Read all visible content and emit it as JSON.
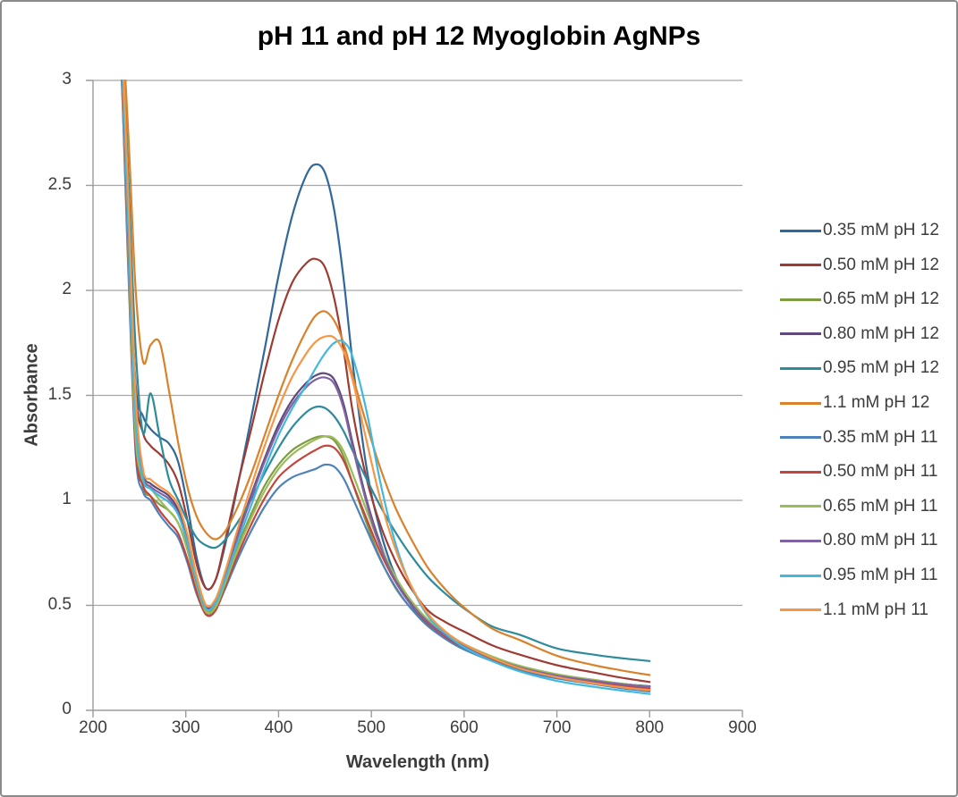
{
  "window": {
    "background": "#ffffff",
    "border_color": "#8a8a8a"
  },
  "colors": {
    "gridline": "#a6a6a6",
    "axis_line": "#9b9b9b",
    "tick_label_text": "#3c3c3c",
    "title_text": "#000000"
  },
  "chart_data": {
    "type": "line",
    "title": "pH 11 and pH 12 Myoglobin AgNPs",
    "xlabel": "Wavelength (nm)",
    "ylabel": "Absorbance",
    "xlim": [
      200,
      900
    ],
    "ylim": [
      0,
      3
    ],
    "xticks": [
      200,
      300,
      400,
      500,
      600,
      700,
      800,
      900
    ],
    "yticks": [
      0,
      0.5,
      1,
      1.5,
      2,
      2.5,
      3
    ],
    "ytick_labels": [
      "0",
      "0.5",
      "1",
      "1.5",
      "2",
      "2.5",
      "3"
    ],
    "grid": "horizontal",
    "legend_position": "right",
    "x": [
      223,
      230,
      238,
      246,
      254,
      262,
      272,
      282,
      292,
      302,
      312,
      322,
      332,
      342,
      355,
      370,
      385,
      400,
      415,
      430,
      440,
      450,
      460,
      470,
      480,
      495,
      510,
      525,
      540,
      560,
      580,
      600,
      630,
      660,
      700,
      740,
      770,
      800
    ],
    "series": [
      {
        "name": "0.35 mM pH 12",
        "color": "#31689b",
        "values": [
          3.5,
          3.2,
          2.3,
          1.55,
          1.4,
          1.34,
          1.3,
          1.27,
          1.18,
          0.97,
          0.72,
          0.58,
          0.62,
          0.78,
          1.05,
          1.38,
          1.72,
          2.07,
          2.36,
          2.55,
          2.6,
          2.56,
          2.38,
          2.06,
          1.65,
          1.15,
          0.85,
          0.65,
          0.52,
          0.41,
          0.34,
          0.29,
          0.24,
          0.2,
          0.165,
          0.14,
          0.125,
          0.115
        ]
      },
      {
        "name": "0.50 mM pH 12",
        "color": "#9e3b33",
        "values": [
          3.5,
          3.2,
          2.35,
          1.52,
          1.32,
          1.26,
          1.22,
          1.17,
          1.08,
          0.9,
          0.69,
          0.58,
          0.62,
          0.8,
          1.06,
          1.33,
          1.61,
          1.86,
          2.04,
          2.13,
          2.15,
          2.11,
          1.96,
          1.72,
          1.42,
          1.1,
          0.88,
          0.72,
          0.6,
          0.48,
          0.42,
          0.375,
          0.31,
          0.265,
          0.215,
          0.18,
          0.155,
          0.135
        ]
      },
      {
        "name": "0.65 mM pH 12",
        "color": "#7e9c42",
        "values": [
          3.4,
          3.15,
          2.2,
          1.32,
          1.06,
          1.02,
          0.98,
          0.95,
          0.89,
          0.76,
          0.58,
          0.47,
          0.5,
          0.61,
          0.77,
          0.93,
          1.07,
          1.17,
          1.24,
          1.28,
          1.3,
          1.305,
          1.285,
          1.21,
          1.08,
          0.89,
          0.72,
          0.59,
          0.5,
          0.405,
          0.345,
          0.3,
          0.25,
          0.21,
          0.17,
          0.143,
          0.126,
          0.112
        ]
      },
      {
        "name": "0.80 mM pH 12",
        "color": "#5f497a",
        "values": [
          3.4,
          3.2,
          2.25,
          1.43,
          1.13,
          1.08,
          1.05,
          1.02,
          0.95,
          0.8,
          0.61,
          0.49,
          0.52,
          0.64,
          0.83,
          1.02,
          1.2,
          1.36,
          1.48,
          1.56,
          1.595,
          1.605,
          1.575,
          1.46,
          1.27,
          1.0,
          0.79,
          0.63,
          0.53,
          0.43,
          0.36,
          0.31,
          0.253,
          0.207,
          0.168,
          0.142,
          0.126,
          0.113
        ]
      },
      {
        "name": "0.95 mM pH 12",
        "color": "#2e8b9c",
        "values": [
          3.5,
          3.3,
          2.55,
          1.72,
          1.32,
          1.51,
          1.3,
          1.1,
          1.0,
          0.9,
          0.82,
          0.785,
          0.775,
          0.81,
          0.89,
          1.0,
          1.13,
          1.25,
          1.35,
          1.42,
          1.445,
          1.44,
          1.4,
          1.33,
          1.235,
          1.1,
          0.97,
          0.855,
          0.755,
          0.64,
          0.555,
          0.485,
          0.4,
          0.36,
          0.295,
          0.265,
          0.248,
          0.235
        ]
      },
      {
        "name": "1.1 mM pH 12",
        "color": "#d9822b",
        "values": [
          3.5,
          3.35,
          2.75,
          2.0,
          1.66,
          1.74,
          1.75,
          1.52,
          1.27,
          1.06,
          0.92,
          0.845,
          0.815,
          0.85,
          0.96,
          1.12,
          1.31,
          1.5,
          1.67,
          1.81,
          1.88,
          1.9,
          1.855,
          1.75,
          1.59,
          1.36,
          1.15,
          0.975,
          0.84,
          0.685,
          0.575,
          0.49,
          0.39,
          0.335,
          0.26,
          0.215,
          0.19,
          0.168
        ]
      },
      {
        "name": "0.35 mM pH 11",
        "color": "#4f81bd",
        "values": [
          3.4,
          3.1,
          2.1,
          1.22,
          1.04,
          1.0,
          0.93,
          0.875,
          0.82,
          0.7,
          0.55,
          0.46,
          0.48,
          0.575,
          0.71,
          0.85,
          0.97,
          1.06,
          1.11,
          1.135,
          1.15,
          1.17,
          1.16,
          1.105,
          1.01,
          0.86,
          0.715,
          0.595,
          0.5,
          0.405,
          0.34,
          0.29,
          0.235,
          0.19,
          0.152,
          0.125,
          0.105,
          0.09
        ]
      },
      {
        "name": "0.50 mM pH 11",
        "color": "#c3453d",
        "values": [
          3.4,
          3.1,
          2.15,
          1.25,
          1.07,
          1.02,
          0.95,
          0.895,
          0.84,
          0.715,
          0.56,
          0.455,
          0.475,
          0.585,
          0.73,
          0.88,
          1.01,
          1.11,
          1.17,
          1.215,
          1.24,
          1.26,
          1.25,
          1.19,
          1.08,
          0.91,
          0.75,
          0.62,
          0.52,
          0.42,
          0.35,
          0.3,
          0.245,
          0.2,
          0.163,
          0.137,
          0.118,
          0.104
        ]
      },
      {
        "name": "0.65 mM pH 11",
        "color": "#9cbb59",
        "values": [
          3.4,
          3.15,
          2.18,
          1.3,
          1.11,
          1.06,
          1.0,
          0.95,
          0.89,
          0.765,
          0.59,
          0.468,
          0.49,
          0.6,
          0.755,
          0.91,
          1.045,
          1.15,
          1.22,
          1.265,
          1.29,
          1.305,
          1.295,
          1.235,
          1.125,
          0.95,
          0.78,
          0.645,
          0.54,
          0.435,
          0.365,
          0.315,
          0.257,
          0.212,
          0.172,
          0.145,
          0.127,
          0.112
        ]
      },
      {
        "name": "0.80 mM pH 11",
        "color": "#8064a2",
        "values": [
          3.4,
          3.18,
          2.23,
          1.41,
          1.115,
          1.065,
          1.035,
          1.005,
          0.935,
          0.79,
          0.605,
          0.483,
          0.517,
          0.635,
          0.815,
          1.005,
          1.185,
          1.34,
          1.46,
          1.54,
          1.575,
          1.585,
          1.555,
          1.44,
          1.25,
          0.985,
          0.775,
          0.625,
          0.52,
          0.425,
          0.355,
          0.305,
          0.249,
          0.204,
          0.165,
          0.14,
          0.124,
          0.111
        ]
      },
      {
        "name": "0.95 mM pH 11",
        "color": "#41b8dc",
        "values": [
          3.4,
          3.2,
          2.3,
          1.38,
          1.1,
          1.055,
          1.02,
          0.99,
          0.93,
          0.795,
          0.61,
          0.483,
          0.51,
          0.62,
          0.79,
          0.97,
          1.15,
          1.31,
          1.44,
          1.55,
          1.63,
          1.7,
          1.75,
          1.755,
          1.68,
          1.42,
          1.08,
          0.81,
          0.62,
          0.455,
          0.365,
          0.3,
          0.235,
          0.185,
          0.14,
          0.112,
          0.094,
          0.078
        ]
      },
      {
        "name": "1.1 mM pH 11",
        "color": "#f79646",
        "values": [
          3.5,
          3.3,
          2.45,
          1.5,
          1.145,
          1.1,
          1.065,
          1.035,
          0.975,
          0.835,
          0.635,
          0.5,
          0.53,
          0.655,
          0.85,
          1.06,
          1.26,
          1.44,
          1.59,
          1.7,
          1.755,
          1.78,
          1.775,
          1.71,
          1.57,
          1.28,
          1.0,
          0.78,
          0.62,
          0.465,
          0.375,
          0.315,
          0.25,
          0.2,
          0.158,
          0.128,
          0.11,
          0.096
        ]
      }
    ]
  }
}
